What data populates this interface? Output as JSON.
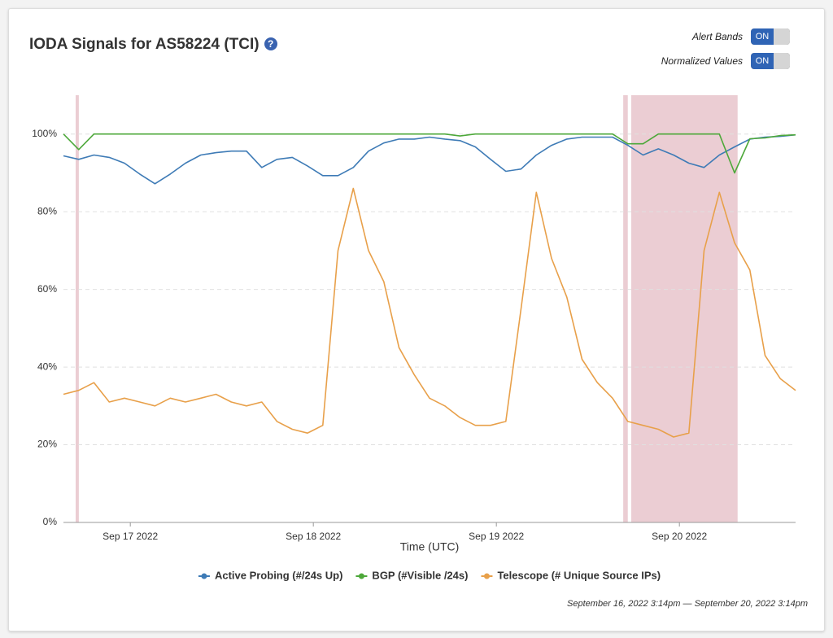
{
  "header": {
    "title": "IODA Signals for AS58224 (TCI)",
    "help": "?"
  },
  "controls": [
    {
      "label": "Alert Bands",
      "state": "ON"
    },
    {
      "label": "Normalized Values",
      "state": "ON"
    }
  ],
  "footer": "September 16, 2022 3:14pm — September 20, 2022 3:14pm",
  "chart_data": {
    "type": "line",
    "xlabel": "Time (UTC)",
    "xlim": [
      "2022-09-16 15:14",
      "2022-09-20 15:14"
    ],
    "xticks": [
      {
        "value": "2022-09-17 00:00",
        "label": "Sep 17 2022"
      },
      {
        "value": "2022-09-18 00:00",
        "label": "Sep 18 2022"
      },
      {
        "value": "2022-09-19 00:00",
        "label": "Sep 19 2022"
      },
      {
        "value": "2022-09-20 00:00",
        "label": "Sep 20 2022"
      }
    ],
    "ylim": [
      0,
      110
    ],
    "yticks": [
      {
        "value": 0,
        "label": "0%"
      },
      {
        "value": 20,
        "label": "20%"
      },
      {
        "value": 40,
        "label": "40%"
      },
      {
        "value": 60,
        "label": "60%"
      },
      {
        "value": 80,
        "label": "80%"
      },
      {
        "value": 100,
        "label": "100%"
      }
    ],
    "grid": true,
    "legend": "bottom",
    "alert_bands": [
      {
        "start": "2022-09-16 16:50",
        "end": "2022-09-16 17:15",
        "color": "#e8c4cb"
      },
      {
        "start": "2022-09-19 16:38",
        "end": "2022-09-19 17:14",
        "color": "#e8c4cb"
      },
      {
        "start": "2022-09-19 17:41",
        "end": "2022-09-20 07:38",
        "color": "#e8c4cb"
      }
    ],
    "x": [
      "2022-09-16 15:14",
      "2022-09-16 17:14",
      "2022-09-16 19:14",
      "2022-09-16 21:14",
      "2022-09-16 23:14",
      "2022-09-17 01:14",
      "2022-09-17 03:14",
      "2022-09-17 05:14",
      "2022-09-17 07:14",
      "2022-09-17 09:14",
      "2022-09-17 11:14",
      "2022-09-17 13:14",
      "2022-09-17 15:14",
      "2022-09-17 17:14",
      "2022-09-17 19:14",
      "2022-09-17 21:14",
      "2022-09-17 23:14",
      "2022-09-18 01:14",
      "2022-09-18 03:14",
      "2022-09-18 05:14",
      "2022-09-18 07:14",
      "2022-09-18 09:14",
      "2022-09-18 11:14",
      "2022-09-18 13:14",
      "2022-09-18 15:14",
      "2022-09-18 17:14",
      "2022-09-18 19:14",
      "2022-09-18 21:14",
      "2022-09-18 23:14",
      "2022-09-19 01:14",
      "2022-09-19 03:14",
      "2022-09-19 05:14",
      "2022-09-19 07:14",
      "2022-09-19 09:14",
      "2022-09-19 11:14",
      "2022-09-19 13:14",
      "2022-09-19 15:14",
      "2022-09-19 17:14",
      "2022-09-19 19:14",
      "2022-09-19 21:14",
      "2022-09-19 23:14",
      "2022-09-20 01:14",
      "2022-09-20 03:14",
      "2022-09-20 05:14",
      "2022-09-20 07:14",
      "2022-09-20 09:14",
      "2022-09-20 11:14",
      "2022-09-20 13:14",
      "2022-09-20 15:14"
    ],
    "series": [
      {
        "name": "Active Probing (#/24s Up)",
        "color": "#3e7bb6",
        "values": [
          94.4,
          93.5,
          94.6,
          94,
          92.5,
          89.7,
          87.2,
          89.7,
          92.5,
          94.6,
          95.2,
          95.6,
          95.6,
          91.4,
          93.5,
          94,
          91.8,
          89.3,
          89.3,
          91.4,
          95.6,
          97.7,
          98.7,
          98.7,
          99.2,
          98.7,
          98.3,
          96.7,
          93.5,
          90.4,
          91,
          94.6,
          97.1,
          98.7,
          99.2,
          99.2,
          99.2,
          97.1,
          94.6,
          96.2,
          94.6,
          92.5,
          91.4,
          94.6,
          96.7,
          98.7,
          99.2,
          99.4,
          99.8
        ]
      },
      {
        "name": "BGP (#Visible /24s)",
        "color": "#4da83a",
        "values": [
          100,
          96,
          100,
          100,
          100,
          100,
          100,
          100,
          100,
          100,
          100,
          100,
          100,
          100,
          100,
          100,
          100,
          100,
          100,
          100,
          100,
          100,
          100,
          100,
          100,
          100,
          99.5,
          100,
          100,
          100,
          100,
          100,
          100,
          100,
          100,
          100,
          100,
          97.5,
          97.5,
          100,
          100,
          100,
          100,
          100,
          90,
          98.8,
          99,
          99.6,
          99.8
        ]
      },
      {
        "name": "Telescope (# Unique Source IPs)",
        "color": "#e8a04a",
        "values": [
          33,
          34,
          36,
          31,
          32,
          31,
          30,
          32,
          31,
          32,
          33,
          31,
          30,
          31,
          26,
          24,
          23,
          25,
          70,
          86,
          70,
          62,
          45,
          38,
          32,
          30,
          27,
          25,
          25,
          26,
          55,
          85,
          68,
          58,
          42,
          36,
          32,
          26,
          25,
          24,
          22,
          23,
          70,
          85,
          72,
          65,
          43,
          37,
          34
        ]
      }
    ]
  }
}
